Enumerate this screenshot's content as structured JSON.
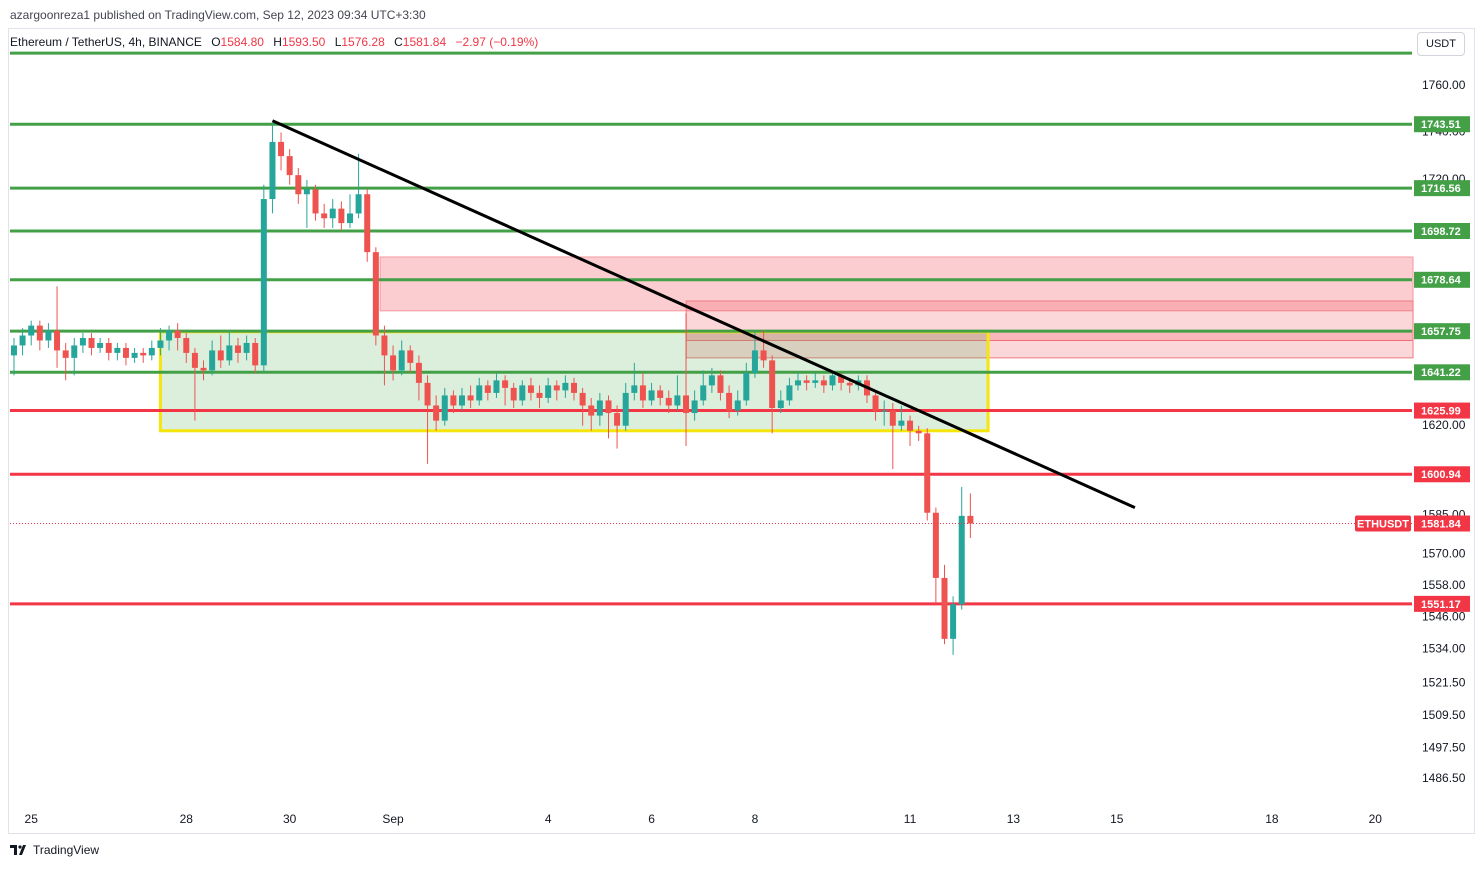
{
  "chart_data": {
    "type": "candlestick",
    "header": {
      "publisher": "azargoonreza1 published on TradingView.com, Sep 12, 2023 09:34 UTC+3:30",
      "symbol": "Ethereum / TetherUS, 4h, BINANCE",
      "ohlc": [
        {
          "key": "O",
          "value": "1584.80"
        },
        {
          "key": "H",
          "value": "1593.50"
        },
        {
          "key": "L",
          "value": "1576.28"
        },
        {
          "key": "C",
          "value": "1581.84"
        }
      ],
      "change": "−2.97 (−0.19%)"
    },
    "currency": "USDT",
    "brand": "TradingView",
    "log_scale": true,
    "grid": false,
    "up_color": "#26a69a",
    "down_color": "#ef5350",
    "xlim": [
      24.59,
      51.71
    ],
    "xticks": [
      25,
      28,
      30,
      {
        "value": 32,
        "label": "Sep"
      },
      {
        "value": 35,
        "label": "4"
      },
      {
        "value": 37,
        "label": "6"
      },
      {
        "value": 39,
        "label": "8"
      },
      {
        "value": 42,
        "label": "11"
      },
      {
        "value": 44,
        "label": "13"
      },
      {
        "value": 46,
        "label": "15"
      },
      {
        "value": 49,
        "label": "18"
      },
      {
        "value": 51,
        "label": "20"
      }
    ],
    "ylim": [
      1468,
      1784
    ],
    "yticks": [
      {
        "value": 1760,
        "label": "1760.00"
      },
      {
        "value": 1740,
        "label": "1740.00"
      },
      {
        "value": 1720,
        "label": "1720.00"
      },
      {
        "value": 1620,
        "label": "1620.00"
      },
      {
        "value": 1585,
        "label": "1585.00"
      },
      {
        "value": 1570,
        "label": "1570.00"
      },
      {
        "value": 1558,
        "label": "1558.00"
      },
      {
        "value": 1546,
        "label": "1546.00"
      },
      {
        "value": 1534,
        "label": "1534.00"
      },
      {
        "value": 1521.5,
        "label": "1521.50"
      },
      {
        "value": 1509.5,
        "label": "1509.50"
      },
      {
        "value": 1497.5,
        "label": "1497.50"
      },
      {
        "value": 1486.5,
        "label": "1486.50"
      }
    ],
    "x": [
      24.667,
      24.833,
      25,
      25.167,
      25.333,
      25.5,
      25.667,
      25.833,
      26,
      26.167,
      26.333,
      26.5,
      26.667,
      26.833,
      27,
      27.167,
      27.333,
      27.5,
      27.667,
      27.833,
      28,
      28.167,
      28.333,
      28.5,
      28.667,
      28.833,
      29,
      29.167,
      29.333,
      29.5,
      29.667,
      29.833,
      30,
      30.167,
      30.333,
      30.5,
      30.667,
      30.833,
      31,
      31.167,
      31.333,
      31.5,
      31.667,
      31.833,
      32,
      32.167,
      32.333,
      32.5,
      32.667,
      32.833,
      33,
      33.167,
      33.333,
      33.5,
      33.667,
      33.833,
      34,
      34.167,
      34.333,
      34.5,
      34.667,
      34.833,
      35,
      35.167,
      35.333,
      35.5,
      35.667,
      35.833,
      36,
      36.167,
      36.333,
      36.5,
      36.667,
      36.833,
      37,
      37.167,
      37.333,
      37.5,
      37.667,
      37.833,
      38,
      38.167,
      38.333,
      38.5,
      38.667,
      38.833,
      39,
      39.167,
      39.333,
      39.5,
      39.667,
      39.833,
      40,
      40.167,
      40.333,
      40.5,
      40.667,
      40.833,
      41,
      41.167,
      41.333,
      41.5,
      41.667,
      41.833,
      42,
      42.167,
      42.333,
      42.5,
      42.667,
      42.833,
      43,
      43.167
    ],
    "open": [
      1648,
      1652,
      1656,
      1660,
      1654,
      1658,
      1650,
      1647,
      1652,
      1655,
      1651,
      1653,
      1649,
      1651,
      1647,
      1649,
      1648,
      1651,
      1654,
      1658,
      1655,
      1649,
      1643,
      1642,
      1650,
      1646,
      1652,
      1649,
      1653,
      1644,
      1712,
      1736,
      1730,
      1722,
      1714,
      1716,
      1706,
      1704,
      1708,
      1702,
      1706,
      1714,
      1690,
      1656,
      1648,
      1642,
      1650,
      1645,
      1637,
      1628,
      1622,
      1632,
      1628,
      1632,
      1630,
      1636,
      1633,
      1638,
      1635,
      1630,
      1636,
      1633,
      1631,
      1636,
      1634,
      1637,
      1633,
      1628,
      1624,
      1630,
      1625,
      1620,
      1633,
      1636,
      1630,
      1634,
      1631,
      1628,
      1632,
      1625,
      1630,
      1636,
      1640,
      1633,
      1626,
      1630,
      1641,
      1650,
      1646,
      1627,
      1630,
      1636,
      1638,
      1637,
      1638,
      1636,
      1640,
      1637,
      1636,
      1638,
      1632,
      1626,
      1626,
      1620,
      1622,
      1618,
      1617,
      1586,
      1561,
      1538,
      1551,
      1584.8
    ],
    "high": [
      1655,
      1659,
      1662,
      1662,
      1661,
      1676,
      1653,
      1655,
      1657,
      1657,
      1655,
      1655,
      1653,
      1653,
      1651,
      1651,
      1654,
      1659,
      1660,
      1661,
      1657,
      1651,
      1646,
      1654,
      1656,
      1658,
      1655,
      1656,
      1655,
      1718,
      1744,
      1740,
      1733,
      1725,
      1720,
      1718,
      1710,
      1712,
      1711,
      1714,
      1731,
      1716,
      1692,
      1660,
      1652,
      1654,
      1652,
      1648,
      1640,
      1632,
      1635,
      1634,
      1635,
      1636,
      1639,
      1638,
      1641,
      1640,
      1637,
      1638,
      1639,
      1636,
      1639,
      1638,
      1640,
      1639,
      1635,
      1631,
      1633,
      1632,
      1628,
      1637,
      1645,
      1641,
      1637,
      1636,
      1634,
      1640,
      1665,
      1634,
      1642,
      1643,
      1642,
      1636,
      1634,
      1645,
      1658,
      1658,
      1648,
      1634,
      1639,
      1641,
      1640,
      1641,
      1640,
      1642,
      1641,
      1639,
      1640,
      1640,
      1634,
      1630,
      1629,
      1628,
      1624,
      1620,
      1619,
      1588,
      1566,
      1554,
      1596,
      1593.5
    ],
    "low": [
      1640,
      1648,
      1652,
      1650,
      1651,
      1643,
      1638,
      1640,
      1649,
      1648,
      1649,
      1646,
      1646,
      1644,
      1645,
      1645,
      1646,
      1648,
      1650,
      1650,
      1645,
      1622,
      1638,
      1640,
      1643,
      1644,
      1645,
      1646,
      1641,
      1641,
      1706,
      1724,
      1718,
      1710,
      1700,
      1703,
      1700,
      1700,
      1699,
      1700,
      1704,
      1686,
      1652,
      1636,
      1638,
      1640,
      1641,
      1630,
      1605,
      1618,
      1620,
      1625,
      1626,
      1627,
      1628,
      1630,
      1631,
      1628,
      1627,
      1628,
      1630,
      1627,
      1629,
      1630,
      1631,
      1630,
      1620,
      1618,
      1620,
      1615,
      1611,
      1618,
      1630,
      1627,
      1628,
      1628,
      1625,
      1626,
      1612,
      1622,
      1628,
      1633,
      1630,
      1623,
      1624,
      1628,
      1639,
      1643,
      1617,
      1625,
      1628,
      1634,
      1634,
      1635,
      1633,
      1634,
      1634,
      1633,
      1634,
      1629,
      1622,
      1620,
      1603,
      1618,
      1612,
      1614,
      1583,
      1551,
      1536,
      1532,
      1549,
      1576.28
    ],
    "close": [
      1652,
      1656,
      1660,
      1654,
      1658,
      1650,
      1647,
      1652,
      1655,
      1651,
      1653,
      1649,
      1651,
      1647,
      1649,
      1648,
      1651,
      1654,
      1658,
      1655,
      1649,
      1643,
      1642,
      1650,
      1646,
      1652,
      1649,
      1653,
      1644,
      1712,
      1736,
      1730,
      1722,
      1714,
      1716,
      1706,
      1704,
      1708,
      1702,
      1706,
      1714,
      1690,
      1656,
      1648,
      1642,
      1650,
      1645,
      1637,
      1628,
      1622,
      1632,
      1628,
      1632,
      1630,
      1636,
      1633,
      1638,
      1635,
      1630,
      1636,
      1633,
      1631,
      1636,
      1634,
      1637,
      1633,
      1628,
      1624,
      1630,
      1625,
      1620,
      1633,
      1636,
      1630,
      1634,
      1631,
      1628,
      1632,
      1625,
      1630,
      1636,
      1640,
      1633,
      1626,
      1630,
      1641,
      1650,
      1646,
      1627,
      1630,
      1636,
      1638,
      1637,
      1638,
      1636,
      1640,
      1637,
      1636,
      1638,
      1632,
      1626,
      1626,
      1620,
      1622,
      1618,
      1617,
      1586,
      1561,
      1538,
      1551,
      1584.8,
      1581.84
    ],
    "levels": [
      {
        "value": 1774,
        "color": "#43a047",
        "show_label": false
      },
      {
        "value": 1743.51,
        "color": "#43a047"
      },
      {
        "value": 1716.56,
        "color": "#43a047"
      },
      {
        "value": 1698.72,
        "color": "#43a047"
      },
      {
        "value": 1678.64,
        "color": "#43a047"
      },
      {
        "value": 1657.75,
        "color": "#43a047"
      },
      {
        "value": 1641.22,
        "color": "#43a047"
      },
      {
        "value": 1625.99,
        "color": "#f23645"
      },
      {
        "value": 1600.94,
        "color": "#f23645"
      },
      {
        "value": 1551.17,
        "color": "#f23645"
      }
    ],
    "zones": [
      {
        "x": [
          31.75,
          51.73
        ],
        "y": [
          1666,
          1688
        ],
        "fill": "rgba(242,54,69,0.25)",
        "stroke": "#f49a9f"
      },
      {
        "x": [
          37.67,
          51.73
        ],
        "y": [
          1654,
          1670
        ],
        "fill": "rgba(242,54,69,0.2)",
        "stroke": "#ee7d84"
      },
      {
        "x": [
          37.67,
          51.73
        ],
        "y": [
          1647,
          1658
        ],
        "fill": "rgba(242,54,69,0.2)",
        "stroke": "#ee7d84"
      },
      {
        "x": [
          27.5,
          43.51
        ],
        "y": [
          1618,
          1657.5
        ],
        "fill": "rgba(76,175,80,0.2)",
        "stroke": "#f5e50b"
      }
    ],
    "trendline": {
      "x": [
        29.667,
        46.35
      ],
      "y": [
        1745,
        1588
      ],
      "color": "#000000"
    },
    "last_price": {
      "symbol": "ETHUSDT",
      "color": "#f23645"
    }
  }
}
